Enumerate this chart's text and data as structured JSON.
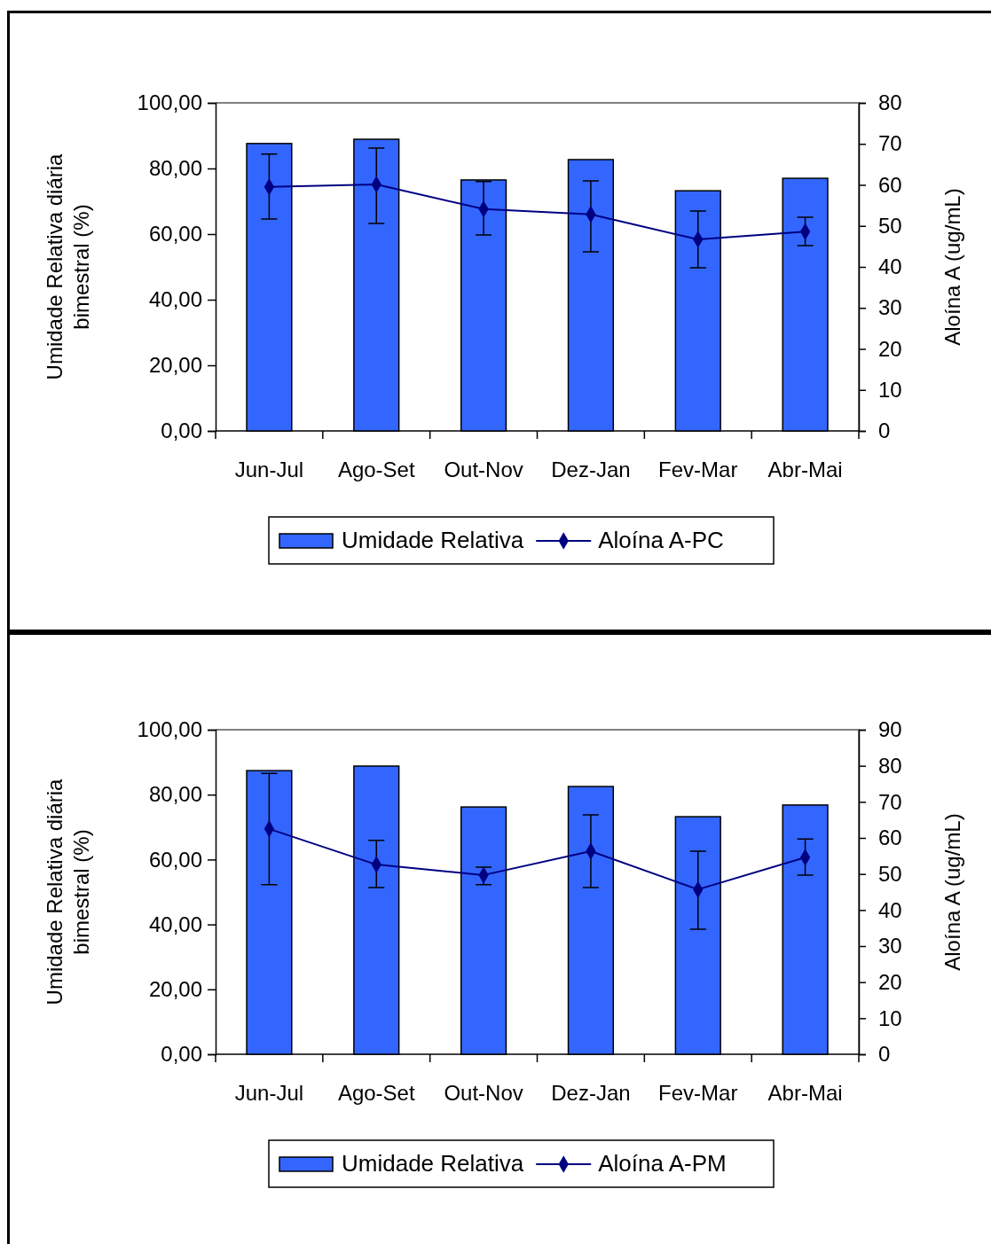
{
  "chart_data": [
    {
      "type": "bar",
      "ylabel": "Umidade Relativa diária\nbimestral (%)",
      "y2label": "Aloína A (ug/mL)",
      "categories": [
        "Jun-Jul",
        "Ago-Set",
        "Out-Nov",
        "Dez-Jan",
        "Fev-Mar",
        "Abr-Mai"
      ],
      "series": [
        {
          "name": "Umidade Relativa",
          "color": "#3366ff",
          "values": [
            87.6,
            88.9,
            76.5,
            82.7,
            73.2,
            77.0
          ]
        },
        {
          "name": "Aloína A-PC",
          "type": "line",
          "axis": "y2",
          "color": "#000080",
          "values": [
            59.5,
            60.1,
            54.1,
            52.8,
            46.7,
            48.6
          ],
          "errors": [
            [
              51.7,
              67.5
            ],
            [
              50.6,
              69.0
            ],
            [
              47.8,
              60.8
            ],
            [
              43.7,
              61.0
            ],
            [
              39.8,
              53.6
            ],
            [
              45.2,
              52.1
            ]
          ]
        }
      ],
      "ylim": [
        0,
        100
      ],
      "yticks": [
        {
          "value": 0,
          "label": "0,00"
        },
        {
          "value": 20,
          "label": "20,00"
        },
        {
          "value": 40,
          "label": "40,00"
        },
        {
          "value": 60,
          "label": "60,00"
        },
        {
          "value": 80,
          "label": "80,00"
        },
        {
          "value": 100,
          "label": "100,00"
        }
      ],
      "y2lim": [
        0,
        80
      ],
      "y2ticks": [
        0,
        10,
        20,
        30,
        40,
        50,
        60,
        70,
        80
      ],
      "legend": "bottom",
      "marker": "diamond"
    },
    {
      "type": "bar",
      "ylabel": "Umidade Relativa diária\nbimestral (%)",
      "y2label": "Aloína A (ug/mL)",
      "categories": [
        "Jun-Jul",
        "Ago-Set",
        "Out-Nov",
        "Dez-Jan",
        "Fev-Mar",
        "Abr-Mai"
      ],
      "series": [
        {
          "name": "Umidade Relativa",
          "color": "#3366ff",
          "values": [
            87.4,
            88.8,
            76.2,
            82.5,
            73.2,
            76.8
          ]
        },
        {
          "name": "Aloína A-PM",
          "type": "line",
          "axis": "y2",
          "color": "#000080",
          "values": [
            62.5,
            52.6,
            49.7,
            56.3,
            45.7,
            54.6
          ],
          "errors": [
            [
              47.0,
              77.9
            ],
            [
              46.2,
              59.3
            ],
            [
              47.0,
              51.9
            ],
            [
              46.2,
              66.4
            ],
            [
              34.7,
              56.3
            ],
            [
              49.7,
              59.7
            ]
          ]
        }
      ],
      "ylim": [
        0,
        100
      ],
      "yticks": [
        {
          "value": 0,
          "label": "0,00"
        },
        {
          "value": 20,
          "label": "20,00"
        },
        {
          "value": 40,
          "label": "40,00"
        },
        {
          "value": 60,
          "label": "60,00"
        },
        {
          "value": 80,
          "label": "80,00"
        },
        {
          "value": 100,
          "label": "100,00"
        }
      ],
      "y2lim": [
        0,
        90
      ],
      "y2ticks": [
        0,
        10,
        20,
        30,
        40,
        50,
        60,
        70,
        80,
        90
      ],
      "legend": "bottom",
      "marker": "diamond"
    }
  ]
}
